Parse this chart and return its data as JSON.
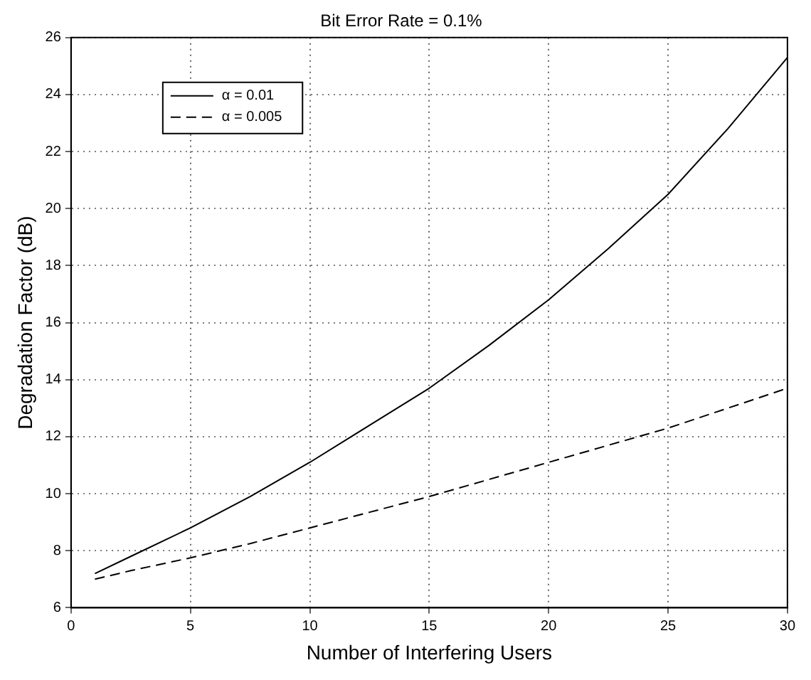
{
  "chart_data": {
    "type": "line",
    "title": "Bit Error Rate = 0.1%",
    "xlabel": "Number of Interfering Users",
    "ylabel": "Degradation Factor (dB)",
    "x": [
      1,
      2.5,
      5,
      7.5,
      10,
      12.5,
      15,
      17.5,
      20,
      22.5,
      25,
      27.5,
      30
    ],
    "series": [
      {
        "name": "α = 0.01",
        "color": "#000000",
        "line_style": "solid",
        "values": [
          7.2,
          7.8,
          8.8,
          9.9,
          11.1,
          12.4,
          13.7,
          15.2,
          16.8,
          18.6,
          20.5,
          22.8,
          25.3
        ]
      },
      {
        "name": "α = 0.005",
        "color": "#000000",
        "line_style": "dashed",
        "values": [
          7.0,
          7.3,
          7.75,
          8.25,
          8.8,
          9.35,
          9.9,
          10.5,
          11.1,
          11.7,
          12.3,
          13.0,
          13.7
        ]
      }
    ],
    "xlim": [
      0,
      30
    ],
    "xticks": [
      0,
      5,
      10,
      15,
      20,
      25,
      30
    ],
    "ylim": [
      6,
      26
    ],
    "yticks": [
      6,
      8,
      10,
      12,
      14,
      16,
      18,
      20,
      22,
      24,
      26
    ],
    "grid": true,
    "legend": "top left",
    "marker": "none"
  }
}
